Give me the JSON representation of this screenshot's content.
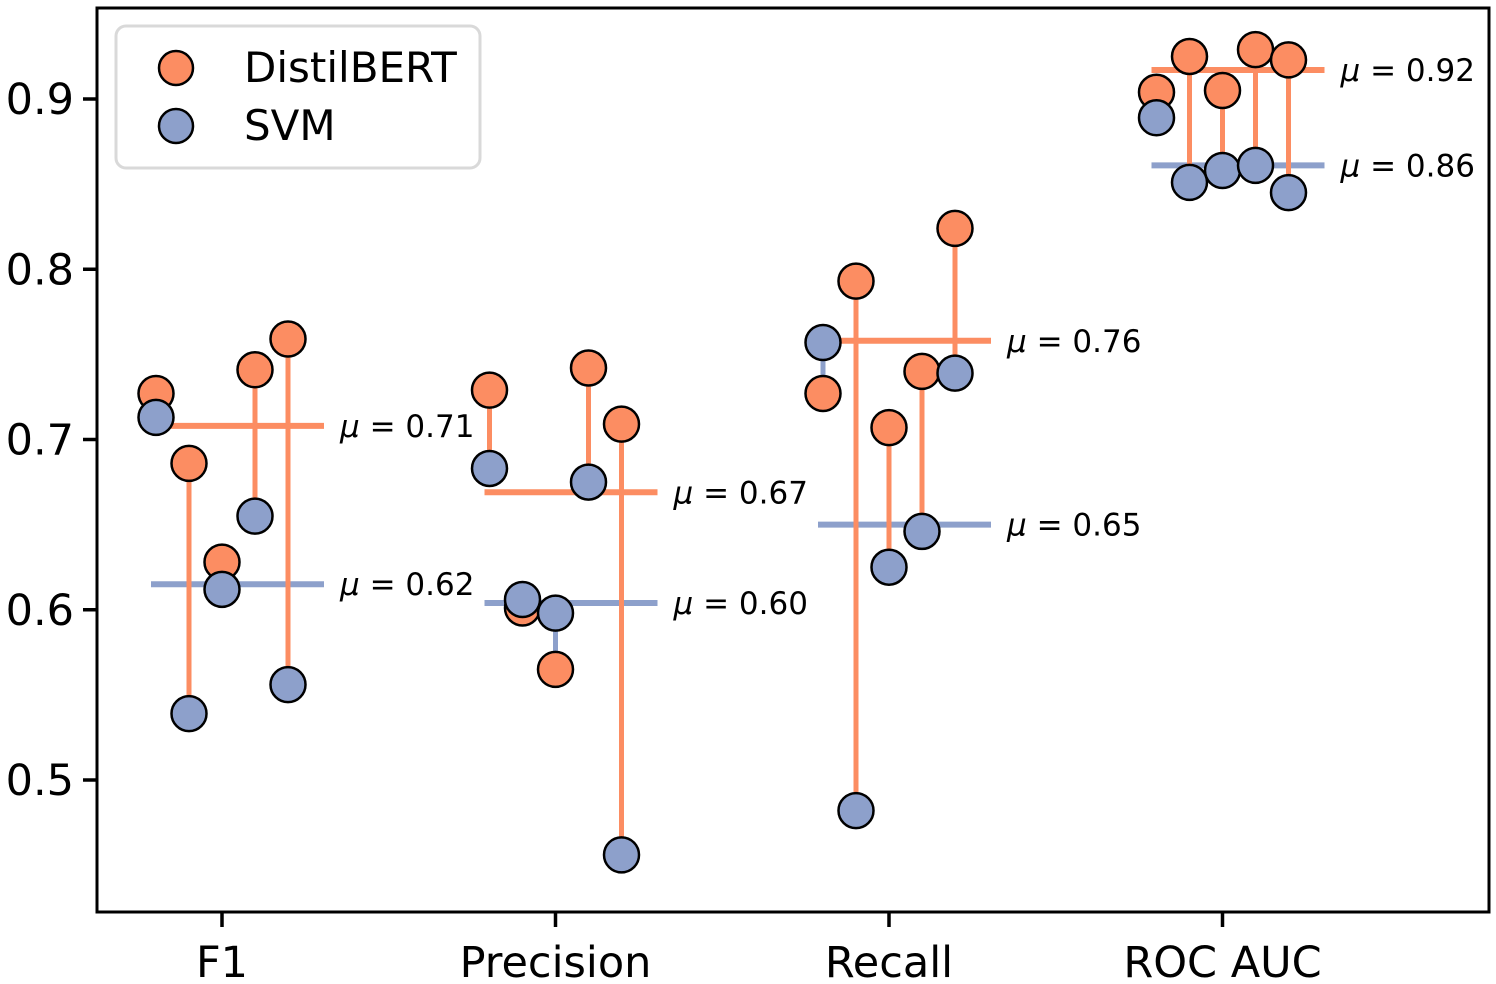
{
  "chart_data": {
    "type": "scatter",
    "subtype": "paired-dumbbell-cv-folds",
    "title": "",
    "xlabel": "",
    "ylabel": "",
    "categories": [
      "F1",
      "Precision",
      "Recall",
      "ROC AUC"
    ],
    "folds_per_category": 5,
    "series": [
      {
        "name": "DistilBERT",
        "color": "#fc8d62",
        "values": [
          [
            0.727,
            0.686,
            0.628,
            0.741,
            0.759
          ],
          [
            0.729,
            0.601,
            0.565,
            0.742,
            0.709
          ],
          [
            0.727,
            0.793,
            0.707,
            0.74,
            0.824
          ],
          [
            0.904,
            0.925,
            0.905,
            0.929,
            0.923
          ]
        ],
        "means": [
          0.708,
          0.669,
          0.758,
          0.917
        ],
        "mean_labels": [
          "μ = 0.71",
          "μ = 0.67",
          "μ = 0.76",
          "μ = 0.92"
        ]
      },
      {
        "name": "SVM",
        "color": "#8da0cb",
        "values": [
          [
            0.713,
            0.539,
            0.612,
            0.655,
            0.556
          ],
          [
            0.683,
            0.606,
            0.598,
            0.675,
            0.456
          ],
          [
            0.757,
            0.482,
            0.625,
            0.646,
            0.739
          ],
          [
            0.889,
            0.851,
            0.858,
            0.861,
            0.845
          ]
        ],
        "means": [
          0.615,
          0.604,
          0.65,
          0.861
        ],
        "mean_labels": [
          "μ = 0.62",
          "μ = 0.60",
          "μ = 0.65",
          "μ = 0.86"
        ]
      }
    ],
    "yticks": [
      "0.5",
      "0.6",
      "0.7",
      "0.8",
      "0.9"
    ],
    "ylim": [
      0.422,
      0.953
    ],
    "grid": false,
    "legend": {
      "position": "upper left",
      "entries": [
        "DistilBERT",
        "SVM"
      ]
    },
    "marker_edge_color": "#000000",
    "legend_border_color": "#d9d9d9",
    "axis_color": "#000000",
    "background": "#ffffff"
  }
}
